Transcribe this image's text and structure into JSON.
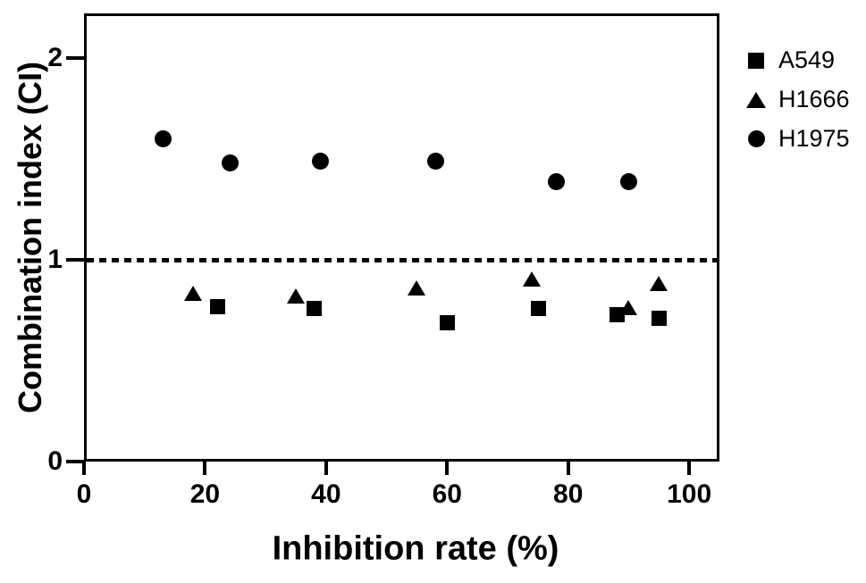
{
  "figure": {
    "background_color": "#ffffff",
    "ink_color": "#000000"
  },
  "chart_data": {
    "type": "scatter",
    "title": "",
    "xlabel": "Inhibition rate (%)",
    "ylabel": "Combination index (CI)",
    "xlim": [
      0,
      105
    ],
    "ylim": [
      0,
      2.22
    ],
    "x_ticks": [
      0,
      20,
      40,
      60,
      80,
      100
    ],
    "y_ticks": [
      0,
      1,
      2
    ],
    "grid": false,
    "legend_position": "right-outside",
    "reference_line": {
      "y": 1,
      "style": "dashed"
    },
    "series": [
      {
        "name": "A549",
        "marker": "square",
        "points": [
          [
            22,
            0.77
          ],
          [
            38,
            0.76
          ],
          [
            60,
            0.69
          ],
          [
            75,
            0.76
          ],
          [
            88,
            0.73
          ],
          [
            95,
            0.71
          ]
        ]
      },
      {
        "name": "H1666",
        "marker": "triangle",
        "points": [
          [
            18,
            0.83
          ],
          [
            35,
            0.82
          ],
          [
            55,
            0.86
          ],
          [
            74,
            0.9
          ],
          [
            90,
            0.76
          ],
          [
            95,
            0.88
          ]
        ]
      },
      {
        "name": "H1975",
        "marker": "circle",
        "points": [
          [
            13,
            1.6
          ],
          [
            24,
            1.48
          ],
          [
            39,
            1.49
          ],
          [
            58,
            1.49
          ],
          [
            78,
            1.39
          ],
          [
            90,
            1.39
          ]
        ]
      }
    ]
  }
}
